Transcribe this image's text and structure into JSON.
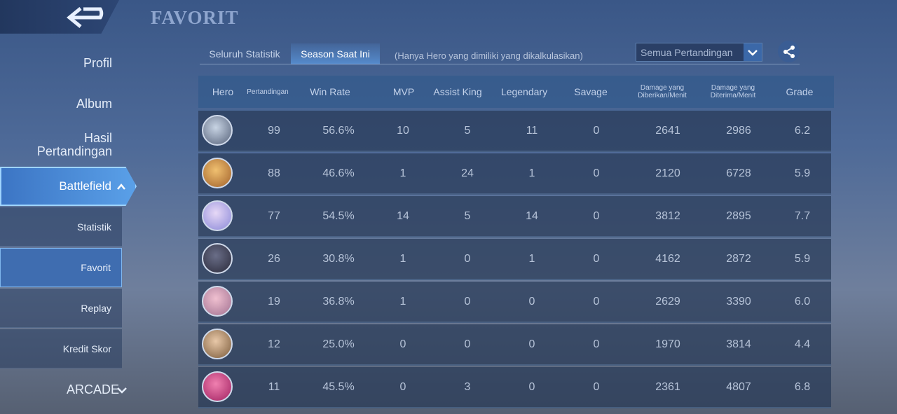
{
  "header": {
    "title": "FAVORIT"
  },
  "sidebar": [
    "Profil",
    "Album",
    "Hasil Pertandingan",
    "Battlefield",
    "ARCADE"
  ],
  "submenu": [
    "Statistik",
    "Favorit",
    "Replay",
    "Kredit Skor"
  ],
  "tabs": [
    "Seluruh Statistik",
    "Season Saat Ini"
  ],
  "note": "(Hanya Hero yang dimiliki yang dikalkulasikan)",
  "dropdown": "Semua Pertandingan",
  "table": {
    "columns": [
      "Hero",
      "Pertandingan",
      "Win Rate",
      "MVP",
      "Assist King",
      "Legendary",
      "Savage",
      "Damage yang Diberikan/Menit",
      "Damage yang Diterima/Menit",
      "Grade"
    ],
    "rows": [
      [
        "99",
        "56.6%",
        "10",
        "5",
        "11",
        "0",
        "2641",
        "2986",
        "6.2"
      ],
      [
        "88",
        "46.6%",
        "1",
        "24",
        "1",
        "0",
        "2120",
        "6728",
        "5.9"
      ],
      [
        "77",
        "54.5%",
        "14",
        "5",
        "14",
        "0",
        "3812",
        "2895",
        "7.7"
      ],
      [
        "26",
        "30.8%",
        "1",
        "0",
        "1",
        "0",
        "4162",
        "2872",
        "5.9"
      ],
      [
        "19",
        "36.8%",
        "1",
        "0",
        "0",
        "0",
        "2629",
        "3390",
        "6.0"
      ],
      [
        "12",
        "25.0%",
        "0",
        "0",
        "0",
        "0",
        "1970",
        "3814",
        "4.4"
      ],
      [
        "11",
        "45.5%",
        "0",
        "3",
        "0",
        "0",
        "2361",
        "4807",
        "6.8"
      ]
    ]
  }
}
